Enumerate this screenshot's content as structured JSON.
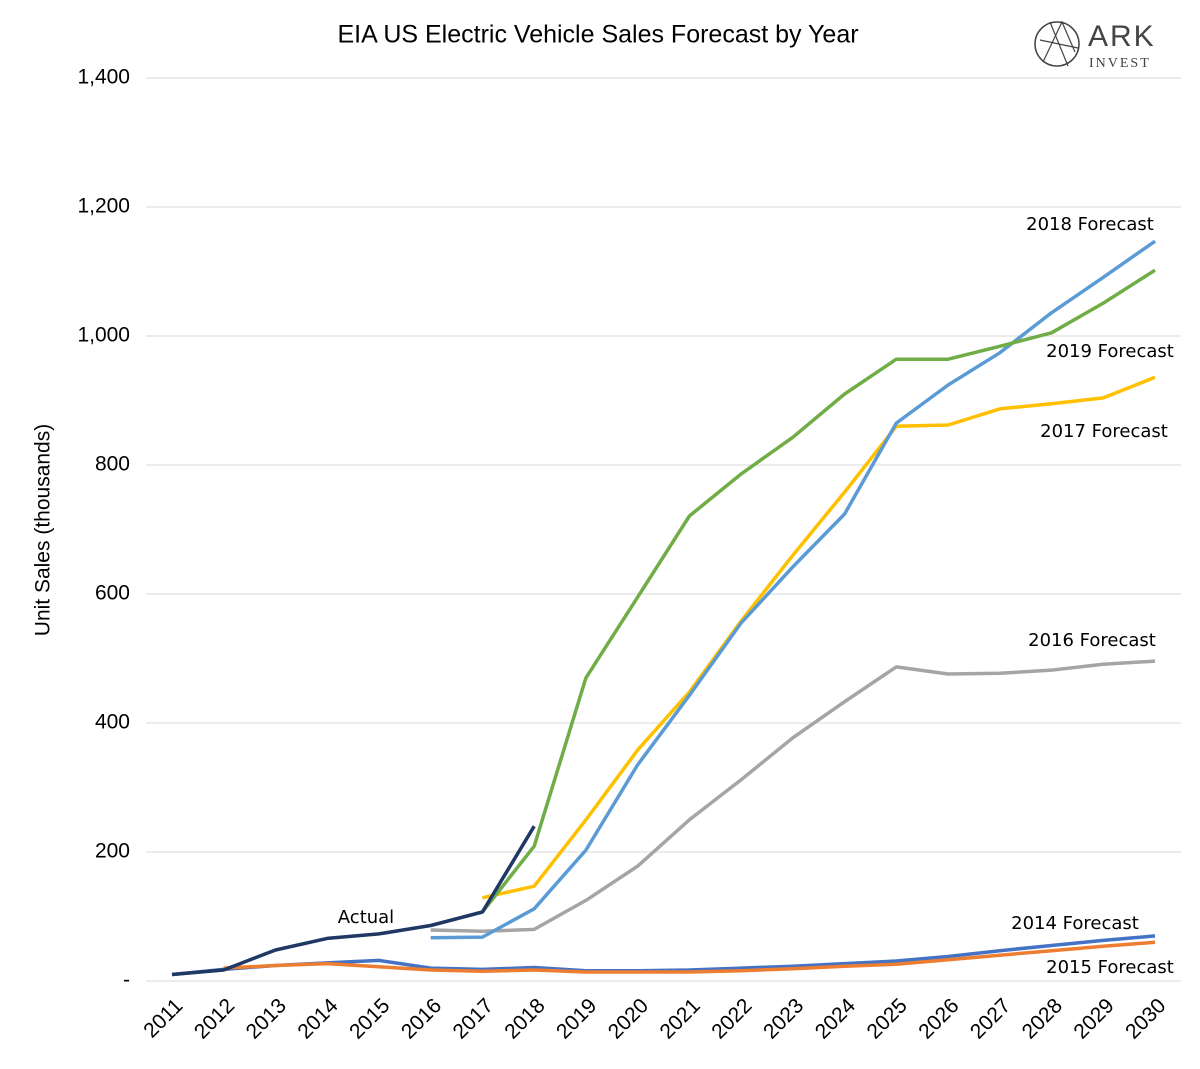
{
  "chart_data": {
    "type": "line",
    "title": "EIA US Electric Vehicle Sales Forecast by Year",
    "logo": {
      "name": "ARK",
      "tagline": "INVEST"
    },
    "y_label": "Unit Sales (thousands)",
    "categories": [
      "2011",
      "2012",
      "2013",
      "2014",
      "2015",
      "2016",
      "2017",
      "2018",
      "2019",
      "2020",
      "2021",
      "2022",
      "2023",
      "2024",
      "2025",
      "2026",
      "2027",
      "2028",
      "2029",
      "2030"
    ],
    "ylim": [
      0,
      1400
    ],
    "yticks": [
      {
        "value": 0,
        "label": "-"
      },
      {
        "value": 200,
        "label": "200"
      },
      {
        "value": 400,
        "label": "400"
      },
      {
        "value": 600,
        "label": "600"
      },
      {
        "value": 800,
        "label": "800"
      },
      {
        "value": 1000,
        "label": "1,000"
      },
      {
        "value": 1200,
        "label": "1,200"
      },
      {
        "value": 1400,
        "label": "1,400"
      }
    ],
    "grid": true,
    "series": [
      {
        "name": "2014 Forecast",
        "color": "#4472c4",
        "values": [
          10,
          18,
          24,
          28,
          32,
          20,
          18,
          21,
          16,
          16,
          17,
          20,
          23,
          27,
          31,
          38,
          47,
          55,
          63,
          70
        ]
      },
      {
        "name": "2015 Forecast",
        "color": "#ed7d31",
        "values": [
          null,
          20,
          24,
          27,
          22,
          17,
          15,
          17,
          14,
          14,
          14,
          16,
          19,
          23,
          26,
          33,
          40,
          47,
          54,
          60
        ]
      },
      {
        "name": "2016 Forecast",
        "color": "#a5a5a5",
        "values": [
          null,
          null,
          null,
          null,
          null,
          79,
          77,
          80,
          125,
          178,
          250,
          312,
          377,
          433,
          487,
          476,
          477,
          482,
          491,
          496
        ]
      },
      {
        "name": "2017 Forecast",
        "color": "#ffc000",
        "values": [
          null,
          null,
          null,
          null,
          null,
          null,
          129,
          147,
          250,
          358,
          448,
          558,
          660,
          758,
          860,
          862,
          887,
          895,
          904,
          936
        ]
      },
      {
        "name": "2018 Forecast",
        "color": "#5b9bd5",
        "values": [
          null,
          null,
          null,
          null,
          null,
          67,
          68,
          112,
          203,
          335,
          443,
          555,
          642,
          724,
          865,
          924,
          974,
          1036,
          1091,
          1147
        ]
      },
      {
        "name": "2019 Forecast",
        "color": "#70ad47",
        "values": [
          null,
          null,
          null,
          null,
          null,
          null,
          107,
          209,
          470,
          595,
          721,
          786,
          843,
          910,
          964,
          964,
          984,
          1005,
          1051,
          1102
        ]
      },
      {
        "name": "Actual",
        "color": "#203864",
        "values": [
          10,
          17,
          48,
          66,
          73,
          86,
          107,
          240,
          null,
          null,
          null,
          null,
          null,
          null,
          null,
          null,
          null,
          null,
          null,
          null
        ]
      }
    ]
  }
}
